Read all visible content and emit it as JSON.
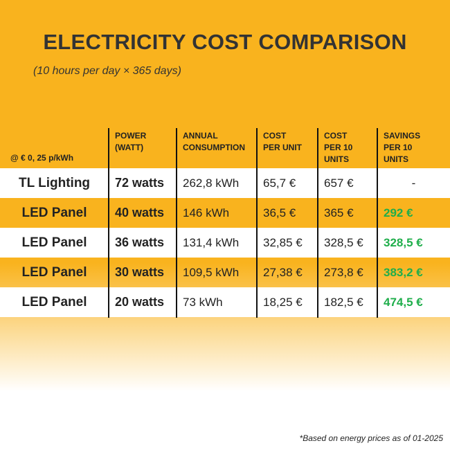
{
  "title": "ELECTRICITY COST COMPARISON",
  "subtitle": "(10 hours per day × 365 days)",
  "table": {
    "corner": "@ € 0, 25 p/kWh",
    "header": [
      [
        "POWER",
        "(WATT)"
      ],
      [
        "ANNUAL",
        "CONSUMPTION"
      ],
      [
        "COST",
        "PER UNIT"
      ],
      [
        "COST",
        "PER 10",
        "UNITS"
      ],
      [
        "SAVINGS",
        "PER 10",
        "UNITS"
      ]
    ],
    "rows": [
      [
        "TL Lighting",
        "72 watts",
        "262,8 kWh",
        "65,7 €",
        "657 €",
        "-"
      ],
      [
        "LED Panel",
        "40 watts",
        "146 kWh",
        "36,5 €",
        "365 €",
        "292 €"
      ],
      [
        "LED Panel",
        "36 watts",
        "131,4 kWh",
        "32,85 €",
        "328,5 €",
        "328,5 €"
      ],
      [
        "LED Panel",
        "30 watts",
        "109,5 kWh",
        "27,38 €",
        "273,8 €",
        "383,2 €"
      ],
      [
        "LED Panel",
        "20 watts",
        "73 kWh",
        "18,25 €",
        "182,5 €",
        "474,5 €"
      ]
    ]
  },
  "footnote": "*Based on energy prices as of 01-2025"
}
